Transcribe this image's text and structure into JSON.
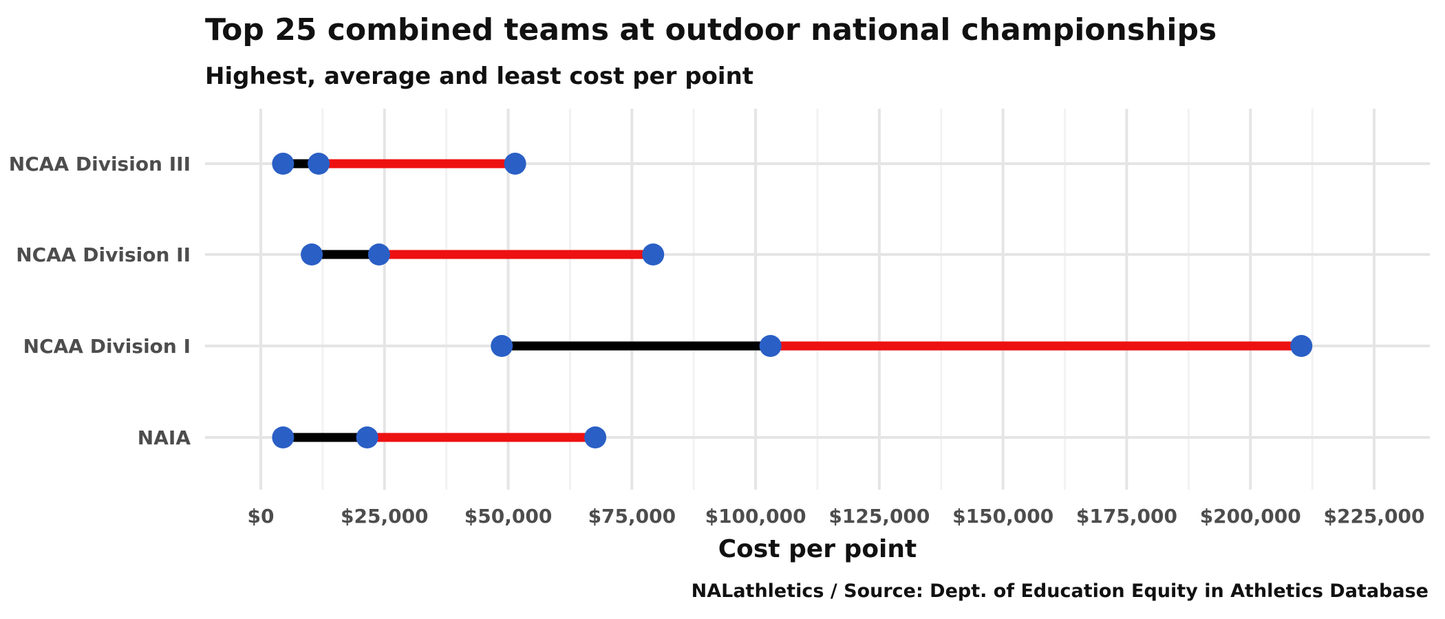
{
  "chart_data": {
    "type": "dumbbell",
    "title": "Top 25 combined teams at outdoor national championships",
    "subtitle": "Highest, average and least cost per point",
    "xlabel": "Cost per point",
    "ylabel": "",
    "caption": "NALathletics / Source: Dept. of Education Equity in Athletics Database",
    "xlim": [
      0,
      225000
    ],
    "x_ticks": [
      0,
      25000,
      50000,
      75000,
      100000,
      125000,
      150000,
      175000,
      200000,
      225000
    ],
    "x_tick_labels": [
      "$0",
      "$25,000",
      "$50,000",
      "$75,000",
      "$100,000",
      "$125,000",
      "$150,000",
      "$175,000",
      "$200,000",
      "$225,000"
    ],
    "categories": [
      "NCAA Division III",
      "NCAA Division II",
      "NCAA Division I",
      "NAIA"
    ],
    "series": [
      {
        "name": "Least",
        "values": [
          4500,
          10300,
          48700,
          4500
        ]
      },
      {
        "name": "Average",
        "values": [
          11700,
          23900,
          103000,
          21500
        ]
      },
      {
        "name": "Highest",
        "values": [
          51400,
          79300,
          210300,
          67600
        ]
      }
    ],
    "grid": true,
    "colors": {
      "low_segment": "#000000",
      "high_segment": "#ee1111",
      "point": "#2a5fc5"
    }
  }
}
